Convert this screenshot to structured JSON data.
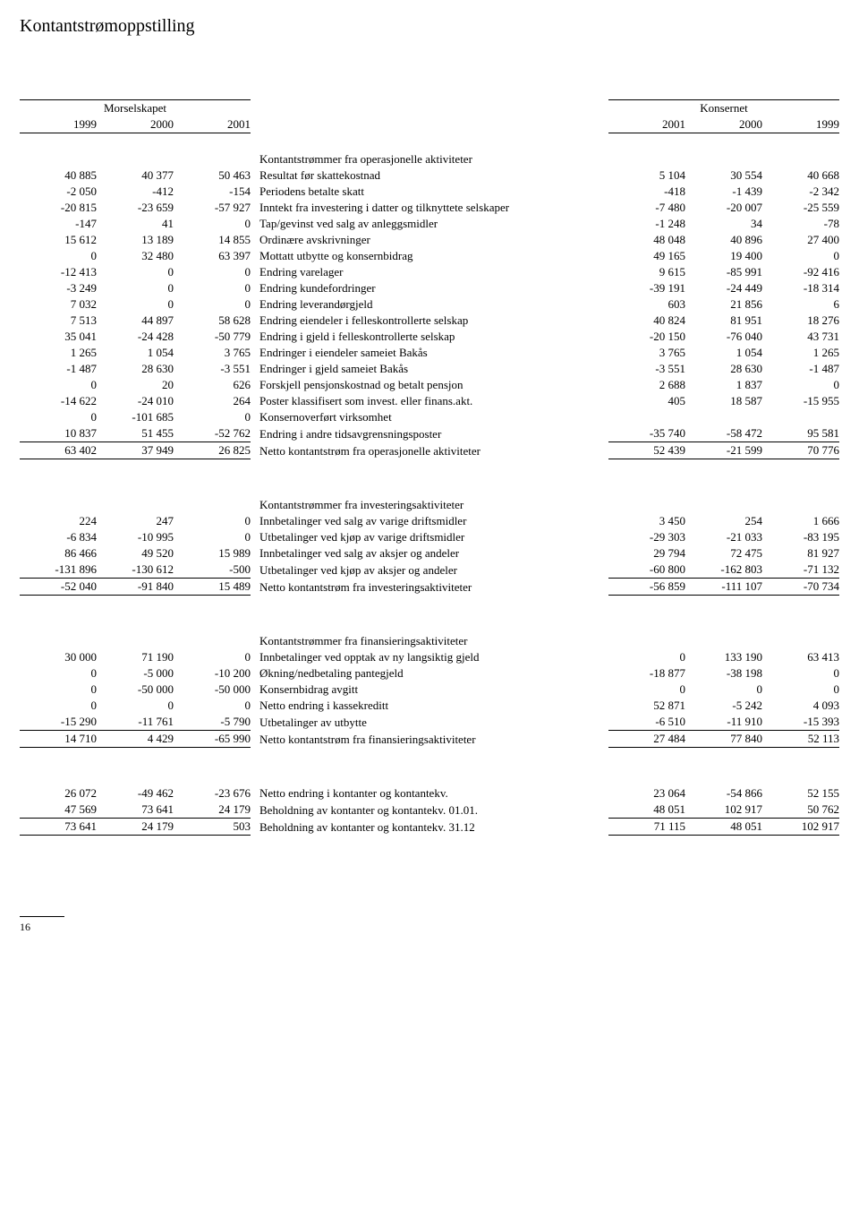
{
  "title": "Kontantstrømoppstilling",
  "page_number": "16",
  "groups": {
    "left": {
      "label": "Morselskapet",
      "years": [
        "1999",
        "2000",
        "2001"
      ]
    },
    "right": {
      "label": "Konsernet",
      "years": [
        "2001",
        "2000",
        "1999"
      ]
    }
  },
  "sections": [
    {
      "heading": "Kontantstrømmer fra operasjonelle aktiviteter",
      "rows": [
        {
          "m": [
            "40 885",
            "40 377",
            "50 463"
          ],
          "label": "Resultat før skattekostnad",
          "k": [
            "5 104",
            "30 554",
            "40 668"
          ]
        },
        {
          "m": [
            "-2 050",
            "-412",
            "-154"
          ],
          "label": "Periodens betalte skatt",
          "k": [
            "-418",
            "-1 439",
            "-2 342"
          ]
        },
        {
          "m": [
            "-20 815",
            "-23 659",
            "-57 927"
          ],
          "label": "Inntekt fra investering i datter og tilknyttete selskaper",
          "k": [
            "-7 480",
            "-20 007",
            "-25 559"
          ]
        },
        {
          "m": [
            "-147",
            "41",
            "0"
          ],
          "label": "Tap/gevinst ved salg av anleggsmidler",
          "k": [
            "-1 248",
            "34",
            "-78"
          ]
        },
        {
          "m": [
            "15 612",
            "13 189",
            "14 855"
          ],
          "label": "Ordinære avskrivninger",
          "k": [
            "48 048",
            "40 896",
            "27 400"
          ]
        },
        {
          "m": [
            "0",
            "32 480",
            "63 397"
          ],
          "label": "Mottatt utbytte og konsernbidrag",
          "k": [
            "49 165",
            "19 400",
            "0"
          ]
        },
        {
          "m": [
            "-12 413",
            "0",
            "0"
          ],
          "label": "Endring varelager",
          "k": [
            "9 615",
            "-85 991",
            "-92 416"
          ]
        },
        {
          "m": [
            "-3 249",
            "0",
            "0"
          ],
          "label": "Endring kundefordringer",
          "k": [
            "-39 191",
            "-24 449",
            "-18 314"
          ]
        },
        {
          "m": [
            "7 032",
            "0",
            "0"
          ],
          "label": "Endring leverandørgjeld",
          "k": [
            "603",
            "21 856",
            "6"
          ]
        },
        {
          "m": [
            "7 513",
            "44 897",
            "58 628"
          ],
          "label": "Endring eiendeler i felleskontrollerte selskap",
          "k": [
            "40 824",
            "81 951",
            "18 276"
          ]
        },
        {
          "m": [
            "35 041",
            "-24 428",
            "-50 779"
          ],
          "label": "Endring i gjeld i felleskontrollerte selskap",
          "k": [
            "-20 150",
            "-76 040",
            "43 731"
          ]
        },
        {
          "m": [
            "1 265",
            "1 054",
            "3 765"
          ],
          "label": "Endringer i eiendeler sameiet Bakås",
          "k": [
            "3 765",
            "1 054",
            "1 265"
          ]
        },
        {
          "m": [
            "-1 487",
            "28 630",
            "-3 551"
          ],
          "label": "Endringer i gjeld sameiet Bakås",
          "k": [
            "-3 551",
            "28 630",
            "-1 487"
          ]
        },
        {
          "m": [
            "0",
            "20",
            "626"
          ],
          "label": "Forskjell pensjonskostnad og betalt pensjon",
          "k": [
            "2 688",
            "1 837",
            "0"
          ]
        },
        {
          "m": [
            "-14 622",
            "-24 010",
            "264"
          ],
          "label": "Poster klassifisert som invest. eller finans.akt.",
          "k": [
            "405",
            "18 587",
            "-15 955"
          ]
        },
        {
          "m": [
            "0",
            "-101 685",
            "0"
          ],
          "label": "Konsernoverført virksomhet",
          "k": [
            "",
            "",
            ""
          ]
        },
        {
          "m": [
            "10 837",
            "51 455",
            "-52 762"
          ],
          "label": "Endring i andre tidsavgrensningsposter",
          "k": [
            "-35 740",
            "-58 472",
            "95 581"
          ]
        }
      ],
      "subtotal": {
        "m": [
          "63 402",
          "37 949",
          "26 825"
        ],
        "label": "Netto kontantstrøm fra operasjonelle aktiviteter",
        "k": [
          "52 439",
          "-21 599",
          "70 776"
        ]
      }
    },
    {
      "heading": "Kontantstrømmer fra investeringsaktiviteter",
      "rows": [
        {
          "m": [
            "224",
            "247",
            "0"
          ],
          "label": "Innbetalinger ved salg av varige driftsmidler",
          "k": [
            "3 450",
            "254",
            "1 666"
          ]
        },
        {
          "m": [
            "-6 834",
            "-10 995",
            "0"
          ],
          "label": "Utbetalinger ved kjøp av varige driftsmidler",
          "k": [
            "-29 303",
            "-21 033",
            "-83 195"
          ]
        },
        {
          "m": [
            "86 466",
            "49 520",
            "15 989"
          ],
          "label": "Innbetalinger ved salg av aksjer og andeler",
          "k": [
            "29 794",
            "72 475",
            "81 927"
          ]
        },
        {
          "m": [
            "-131 896",
            "-130 612",
            "-500"
          ],
          "label": "Utbetalinger ved kjøp av aksjer og andeler",
          "k": [
            "-60 800",
            "-162 803",
            "-71 132"
          ]
        }
      ],
      "subtotal": {
        "m": [
          "-52 040",
          "-91 840",
          "15 489"
        ],
        "label": "Netto kontantstrøm fra investeringsaktiviteter",
        "k": [
          "-56 859",
          "-111 107",
          "-70 734"
        ]
      }
    },
    {
      "heading": "Kontantstrømmer fra finansieringsaktiviteter",
      "rows": [
        {
          "m": [
            "30 000",
            "71 190",
            "0"
          ],
          "label": "Innbetalinger ved opptak av ny langsiktig gjeld",
          "k": [
            "0",
            "133 190",
            "63 413"
          ]
        },
        {
          "m": [
            "0",
            "-5 000",
            "-10 200"
          ],
          "label": "Økning/nedbetaling pantegjeld",
          "k": [
            "-18 877",
            "-38 198",
            "0"
          ]
        },
        {
          "m": [
            "0",
            "-50 000",
            "-50 000"
          ],
          "label": "Konsernbidrag avgitt",
          "k": [
            "0",
            "0",
            "0"
          ]
        },
        {
          "m": [
            "0",
            "0",
            "0"
          ],
          "label": "Netto endring i kassekreditt",
          "k": [
            "52 871",
            "-5 242",
            "4 093"
          ]
        },
        {
          "m": [
            "-15 290",
            "-11 761",
            "-5 790"
          ],
          "label": "Utbetalinger av utbytte",
          "k": [
            "-6 510",
            "-11 910",
            "-15 393"
          ]
        }
      ],
      "subtotal": {
        "m": [
          "14 710",
          "4 429",
          "-65 990"
        ],
        "label": "Netto kontantstrøm fra finansieringsaktiviteter",
        "k": [
          "27 484",
          "77 840",
          "52 113"
        ]
      }
    }
  ],
  "closing": {
    "rows": [
      {
        "m": [
          "26 072",
          "-49 462",
          "-23 676"
        ],
        "label": "Netto endring i kontanter og kontantekv.",
        "k": [
          "23 064",
          "-54 866",
          "52 155"
        ]
      },
      {
        "m": [
          "47 569",
          "73 641",
          "24 179"
        ],
        "label": "Beholdning av kontanter og kontantekv. 01.01.",
        "k": [
          "48 051",
          "102 917",
          "50 762"
        ]
      }
    ],
    "subtotal": {
      "m": [
        "73 641",
        "24 179",
        "503"
      ],
      "label": "Beholdning av kontanter og kontantekv. 31.12",
      "k": [
        "71 115",
        "48 051",
        "102 917"
      ]
    }
  }
}
